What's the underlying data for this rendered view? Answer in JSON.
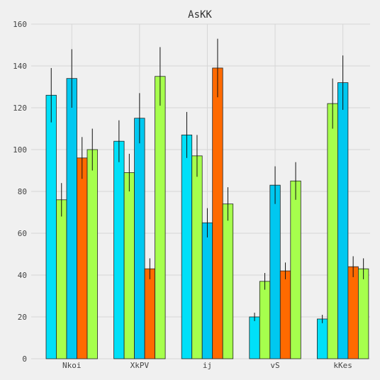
{
  "chart_data": {
    "type": "bar",
    "title": "AsKK",
    "xlabel": "",
    "ylabel": "",
    "ylim": [
      0,
      160
    ],
    "yticks": [
      0,
      20,
      40,
      60,
      80,
      100,
      120,
      140,
      160
    ],
    "grid": true,
    "categories": [
      "Nkoi",
      "XkPV",
      "ij",
      "vS",
      "kKes"
    ],
    "series": [
      {
        "color": "#00e0f8",
        "values": [
          126,
          104,
          107,
          20,
          19
        ],
        "errors": [
          13,
          10,
          11,
          2,
          2
        ]
      },
      {
        "color": "#a6ff4d",
        "values": [
          76,
          89,
          97,
          37,
          122
        ],
        "errors": [
          8,
          9,
          10,
          4,
          12
        ]
      },
      {
        "color": "#00c8f0",
        "values": [
          134,
          115,
          65,
          83,
          132
        ],
        "errors": [
          14,
          12,
          7,
          9,
          13
        ]
      },
      {
        "color": "#ff6a00",
        "values": [
          96,
          43,
          139,
          42,
          44
        ],
        "errors": [
          10,
          5,
          14,
          4,
          5
        ]
      },
      {
        "color": "#a6ff4d",
        "values": [
          100,
          135,
          74,
          85,
          43
        ],
        "errors": [
          10,
          14,
          8,
          9,
          5
        ]
      }
    ]
  }
}
